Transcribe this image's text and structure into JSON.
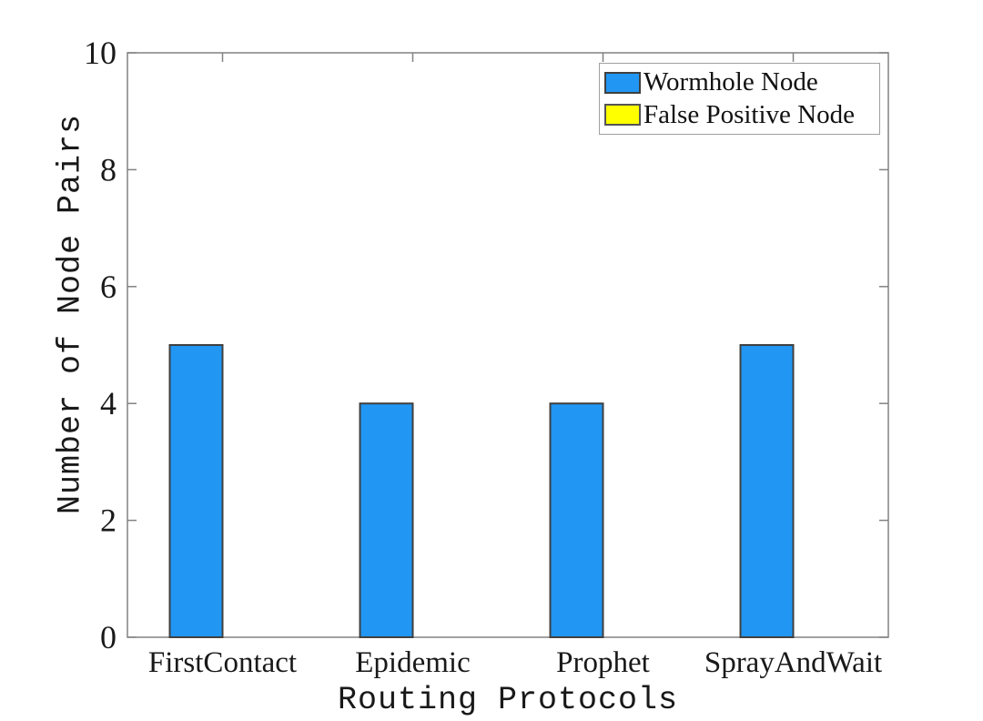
{
  "figure": {
    "background": "#ffffff",
    "axis_color": "#828282",
    "tick_label_color": "#191919"
  },
  "chart_data": {
    "type": "bar",
    "title": "",
    "xlabel": "Routing Protocols",
    "ylabel": "Number of Node Pairs",
    "categories": [
      "FirstContact",
      "Epidemic",
      "Prophet",
      "SprayAndWait"
    ],
    "series": [
      {
        "name": "Wormhole Node",
        "color": "#2196f3",
        "edge_color": "#404040",
        "values": [
          5,
          4,
          4,
          5
        ]
      },
      {
        "name": "False Positive Node",
        "color": "#ffff00",
        "edge_color": "#555555",
        "values": [
          0,
          0,
          0,
          0
        ]
      }
    ],
    "ylim": [
      0,
      10
    ],
    "yticks": [
      0,
      2,
      4,
      6,
      8,
      10
    ],
    "grid": false,
    "legend_position": "top-right",
    "bar_layout": "grouped"
  }
}
